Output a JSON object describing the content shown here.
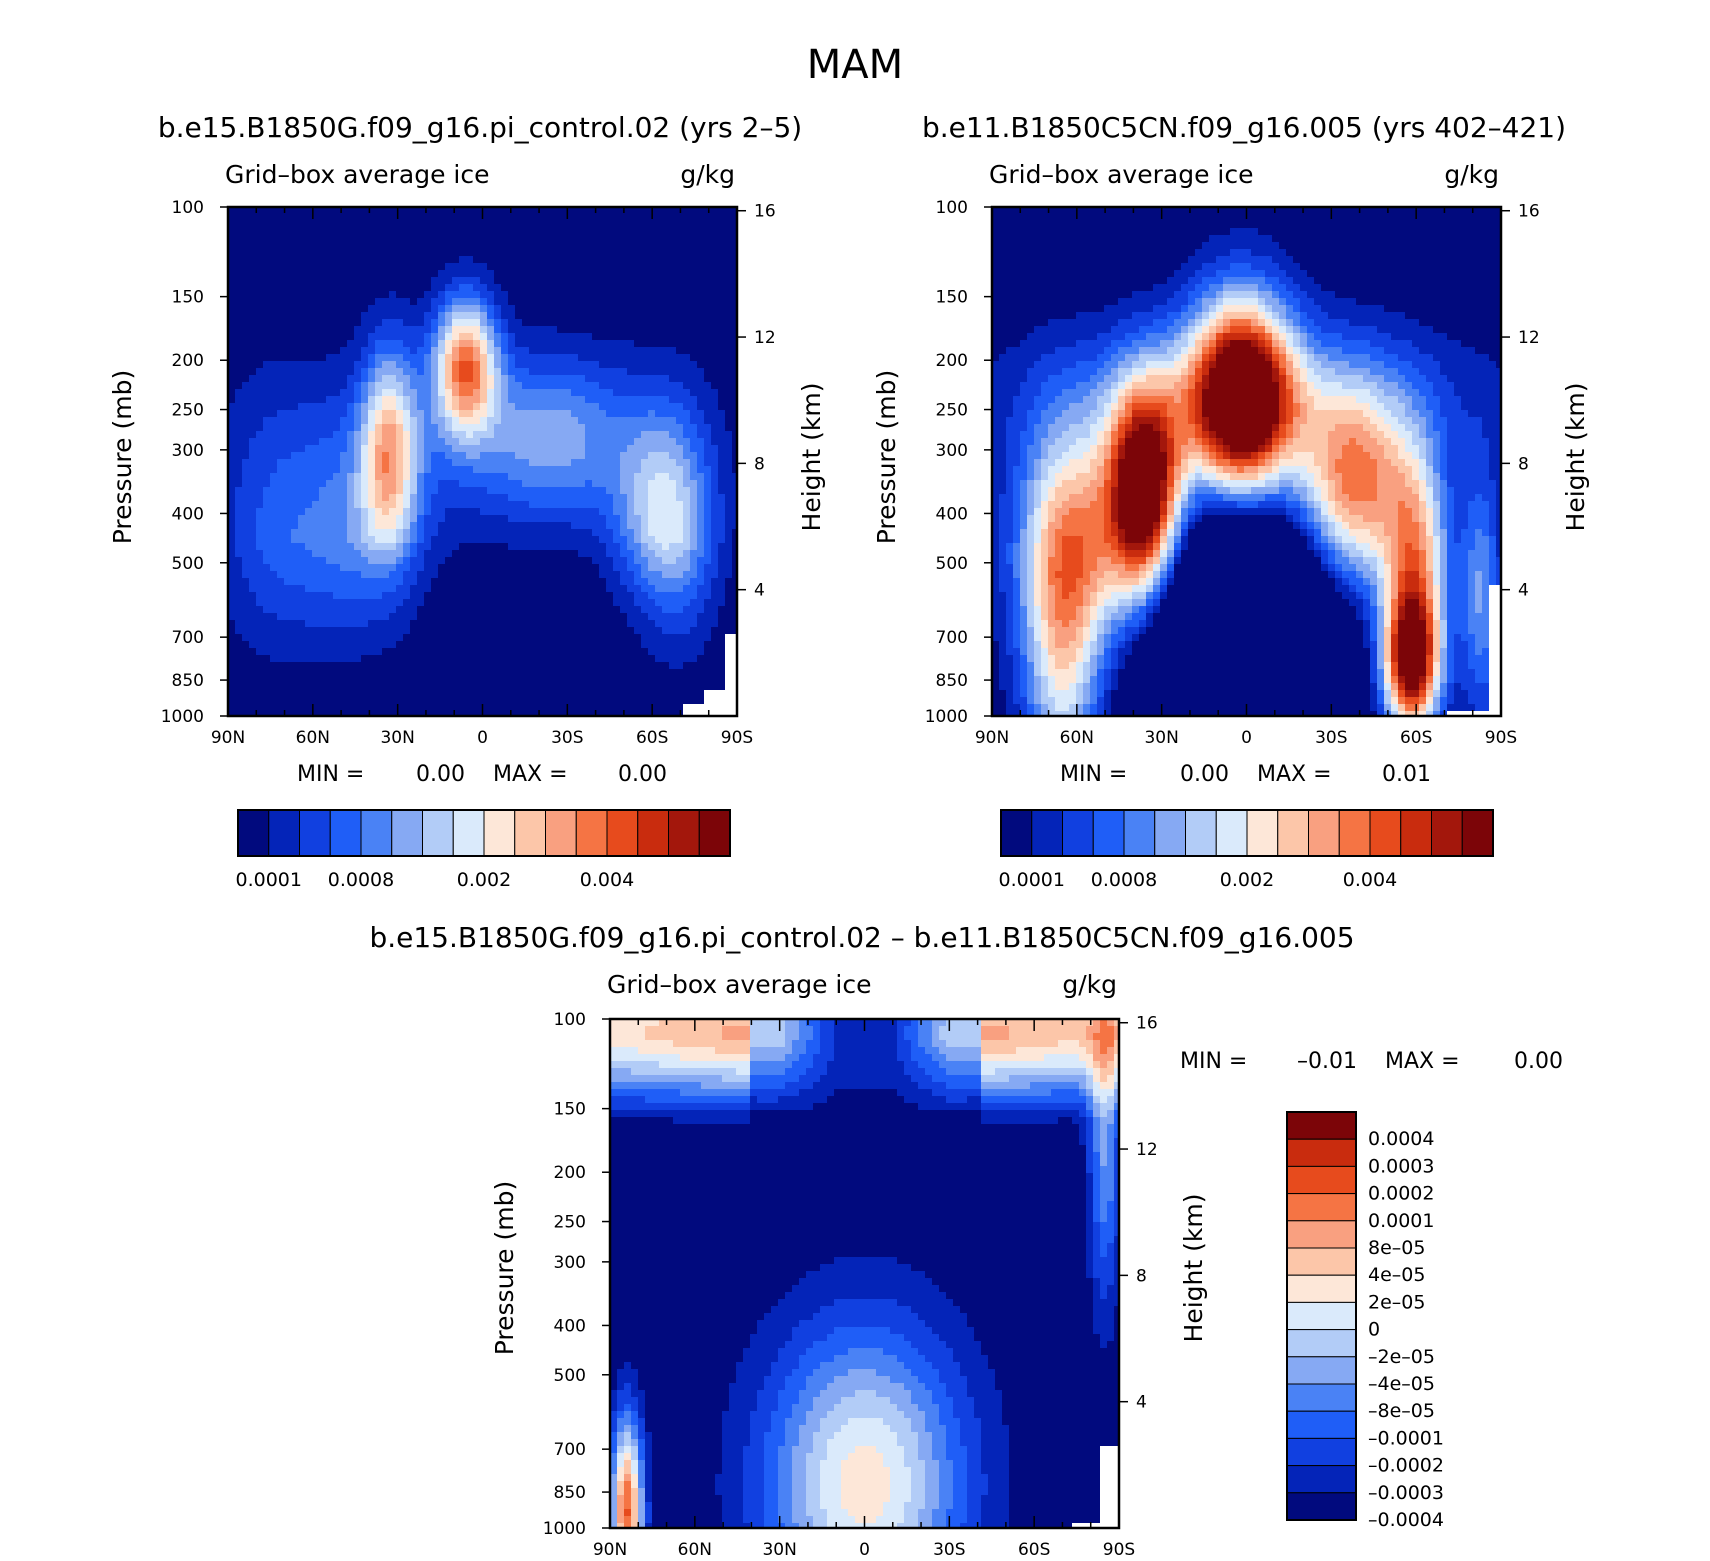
{
  "figure": {
    "title": "MAM",
    "colors": {
      "seq_palette": [
        "#010a7e",
        "#0424b8",
        "#1140e0",
        "#1f5ef7",
        "#4a82f5",
        "#86a9f3",
        "#b2ccf7",
        "#daeafb",
        "#fde7d8",
        "#fcc6a9",
        "#f9a080",
        "#f57444",
        "#e74b1d",
        "#c92c0e",
        "#a3170c",
        "#7c0508"
      ],
      "diff_palette": [
        "#010a7e",
        "#0424b8",
        "#1140e0",
        "#1f5ef7",
        "#4a82f5",
        "#86a9f3",
        "#b2ccf7",
        "#daeafb",
        "#fde7d8",
        "#fcc6a9",
        "#f9a080",
        "#f57444",
        "#e74b1d",
        "#c92c0e",
        "#7c0508"
      ],
      "missing": "#ffffff"
    }
  },
  "chart_data": [
    {
      "type": "heatmap",
      "panel": "top-left",
      "title": "b.e15.B1850G.f09_g16.pi_control.02 (yrs 2–5)",
      "variable": "Grid–box average ice",
      "units": "g/kg",
      "xlabel": "",
      "ylabel": "Pressure (mb)",
      "y2label": "Height (km)",
      "xlim": [
        -90,
        90
      ],
      "ylim": [
        1000,
        100
      ],
      "x_ticks": [
        "90N",
        "60N",
        "30N",
        "0",
        "30S",
        "60S",
        "90S"
      ],
      "y_ticks": [
        "100",
        "150",
        "200",
        "250",
        "300",
        "400",
        "500",
        "700",
        "850",
        "1000"
      ],
      "y2_ticks": [
        "16",
        "12",
        "8",
        "4"
      ],
      "stats": {
        "min_label": "MIN =",
        "min": "0.00",
        "max_label": "MAX =",
        "max": "0.00"
      },
      "colorbar": {
        "orientation": "horizontal",
        "labels": [
          "0.0001",
          "0.0008",
          "0.002",
          "0.004"
        ]
      },
      "features": [
        {
          "lat": 6,
          "p": 200,
          "level": 11,
          "note": "upper tropical maximum"
        },
        {
          "lat": 33,
          "p": 290,
          "level": 8,
          "note": "northern midlatitude maximum"
        },
        {
          "lat": -63,
          "p": 380,
          "level": 6,
          "note": "southern midlatitude band"
        },
        {
          "lat": -20,
          "p": 280,
          "level": 5
        }
      ]
    },
    {
      "type": "heatmap",
      "panel": "top-right",
      "title": "b.e11.B1850C5CN.f09_g16.005 (yrs 402–421)",
      "variable": "Grid–box average ice",
      "units": "g/kg",
      "xlabel": "",
      "ylabel": "Pressure (mb)",
      "y2label": "Height (km)",
      "xlim": [
        -90,
        90
      ],
      "ylim": [
        1000,
        100
      ],
      "x_ticks": [
        "90N",
        "60N",
        "30N",
        "0",
        "30S",
        "60S",
        "90S"
      ],
      "y_ticks": [
        "100",
        "150",
        "200",
        "250",
        "300",
        "400",
        "500",
        "700",
        "850",
        "1000"
      ],
      "y2_ticks": [
        "16",
        "12",
        "8",
        "4"
      ],
      "stats": {
        "min_label": "MIN =",
        "min": "0.00",
        "max_label": "MAX =",
        "max": "0.01"
      },
      "colorbar": {
        "orientation": "horizontal",
        "labels": [
          "0.0001",
          "0.0008",
          "0.002",
          "0.004"
        ]
      },
      "features": [
        {
          "lat": 3,
          "p": 250,
          "level": 15,
          "note": "upper tropical maximum"
        },
        {
          "lat": 35,
          "p": 360,
          "level": 15,
          "note": "northern midlatitude maximum"
        },
        {
          "lat": -58,
          "p": 780,
          "level": 14,
          "note": "southern low-level maximum"
        },
        {
          "lat": -40,
          "p": 370,
          "level": 12
        },
        {
          "lat": 70,
          "p": 800,
          "level": 8
        }
      ]
    },
    {
      "type": "heatmap",
      "panel": "bottom",
      "title": "b.e15.B1850G.f09_g16.pi_control.02 – b.e11.B1850C5CN.f09_g16.005",
      "variable": "Grid–box average ice",
      "units": "g/kg",
      "xlabel": "",
      "ylabel": "Pressure (mb)",
      "y2label": "Height (km)",
      "xlim": [
        -90,
        90
      ],
      "ylim": [
        1000,
        100
      ],
      "x_ticks": [
        "90N",
        "60N",
        "30N",
        "0",
        "30S",
        "60S",
        "90S"
      ],
      "y_ticks": [
        "100",
        "150",
        "200",
        "250",
        "300",
        "400",
        "500",
        "700",
        "850",
        "1000"
      ],
      "y2_ticks": [
        "16",
        "12",
        "8",
        "4"
      ],
      "stats": {
        "min_label": "MIN =",
        "min": "–0.01",
        "max_label": "MAX =",
        "max": "0.00"
      },
      "colorbar": {
        "orientation": "vertical",
        "labels": [
          "0.0004",
          "0.0003",
          "0.0002",
          "0.0001",
          "8e–05",
          "4e–05",
          "2e–05",
          "0",
          "–2e–05",
          "–4e–05",
          "–8e–05",
          "–0.0001",
          "–0.0002",
          "–0.0003",
          "–0.0004"
        ]
      },
      "features": [
        {
          "lat": 0,
          "p": 250,
          "level": 0,
          "note": "large negative difference aloft"
        },
        {
          "lat": 0,
          "p": 800,
          "level": 8,
          "note": "slightly positive tropical lower troposphere"
        },
        {
          "lat": 85,
          "p": 900,
          "level": 12,
          "note": "positive near north pole surface"
        }
      ]
    }
  ]
}
